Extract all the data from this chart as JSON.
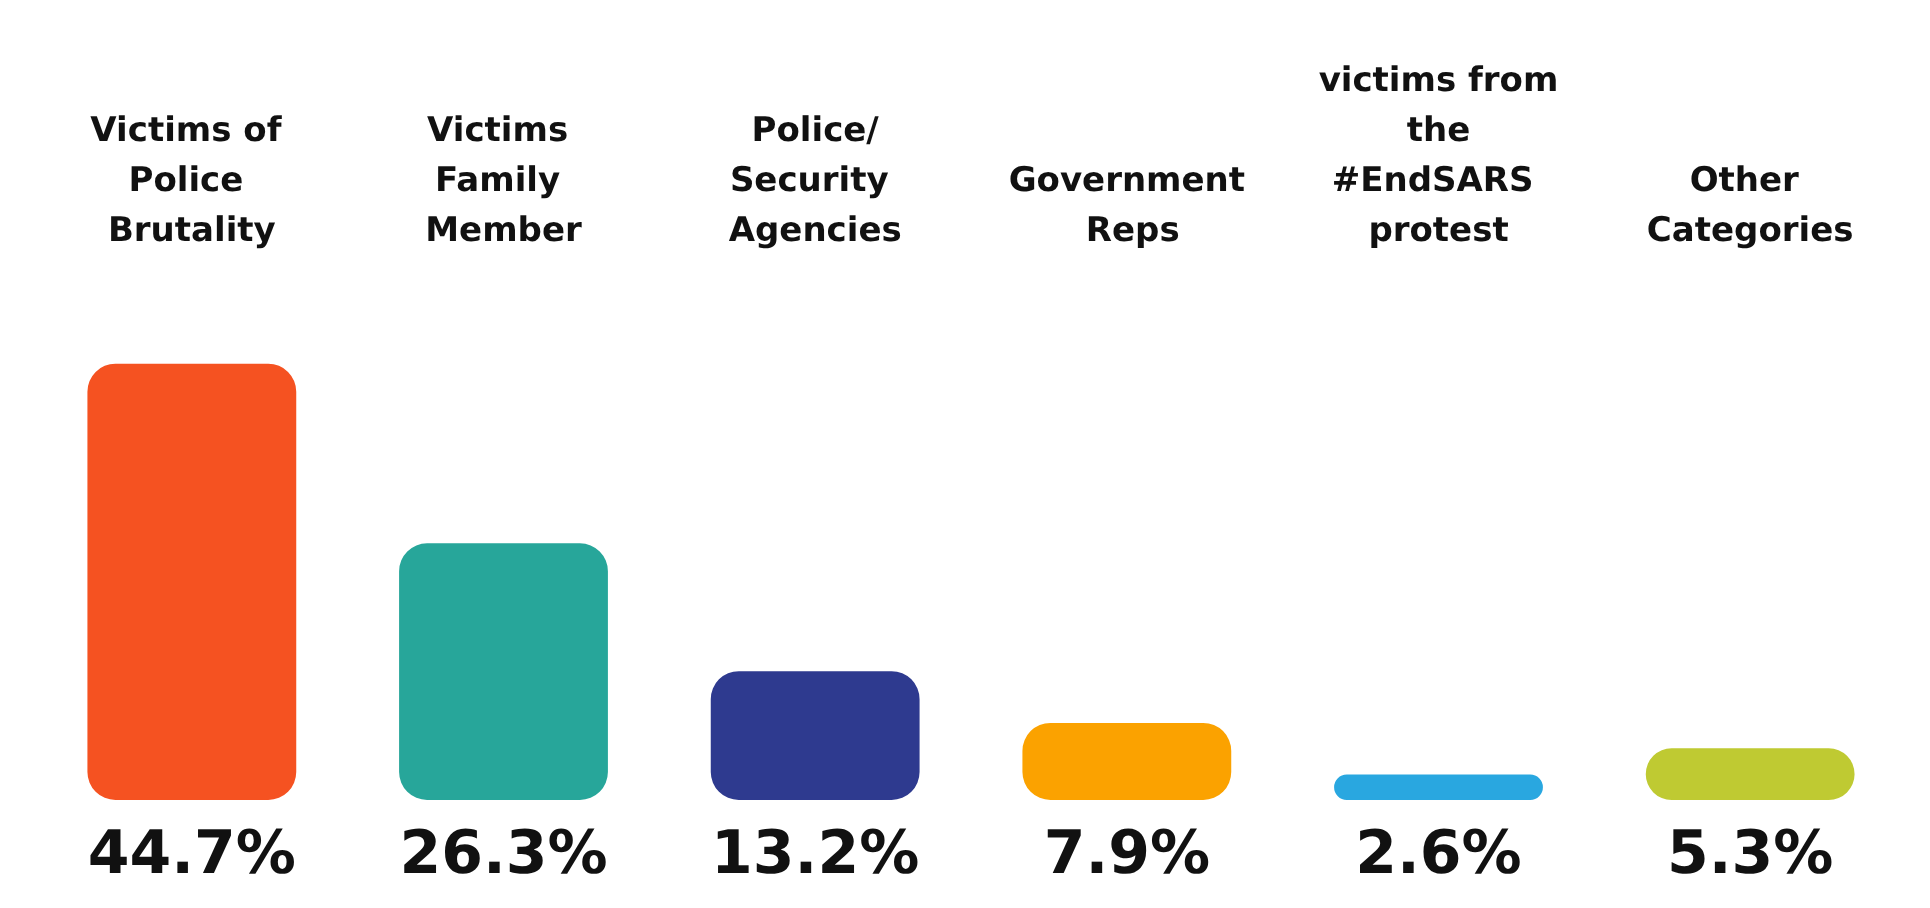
{
  "chart_data": {
    "type": "bar",
    "categories": [
      "Victims of Police Brutality",
      "Victims Family Member",
      "Police/Security Agencies",
      "Government Reps",
      "victims from the #EndSARS protest",
      "Other Categories"
    ],
    "values": [
      44.7,
      26.3,
      13.2,
      7.9,
      2.6,
      5.3
    ],
    "colors": [
      "#f55221",
      "#27a69a",
      "#2e3a8f",
      "#fba200",
      "#29a7e0",
      "#bfca32"
    ],
    "value_labels": [
      "44.7%",
      "26.3%",
      "13.2%",
      "7.9%",
      "2.6%",
      "5.3%"
    ]
  }
}
